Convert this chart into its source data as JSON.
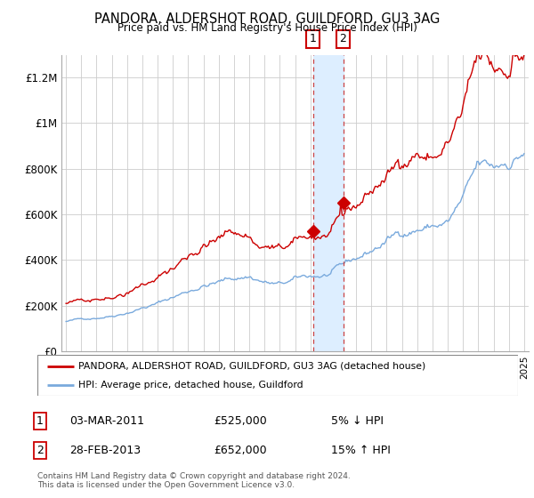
{
  "title": "PANDORA, ALDERSHOT ROAD, GUILDFORD, GU3 3AG",
  "subtitle": "Price paid vs. HM Land Registry's House Price Index (HPI)",
  "legend_line1": "PANDORA, ALDERSHOT ROAD, GUILDFORD, GU3 3AG (detached house)",
  "legend_line2": "HPI: Average price, detached house, Guildford",
  "footer": "Contains HM Land Registry data © Crown copyright and database right 2024.\nThis data is licensed under the Open Government Licence v3.0.",
  "transaction1_date": "03-MAR-2011",
  "transaction1_price": 525000,
  "transaction1_pct": "5% ↓ HPI",
  "transaction2_date": "28-FEB-2013",
  "transaction2_price": 652000,
  "transaction2_pct": "15% ↑ HPI",
  "line_color_red": "#cc0000",
  "line_color_blue": "#7aaadd",
  "shade_color": "#ddeeff",
  "background_color": "#ffffff",
  "grid_color": "#cccccc",
  "ylim": [
    0,
    1300000
  ],
  "yticks": [
    0,
    200000,
    400000,
    600000,
    800000,
    1000000,
    1200000
  ],
  "ytick_labels": [
    "£0",
    "£200K",
    "£400K",
    "£600K",
    "£800K",
    "£1M",
    "£1.2M"
  ],
  "transaction1_x": 2011.17,
  "transaction2_x": 2013.15,
  "xmin": 1995.0,
  "xmax": 2025.3
}
